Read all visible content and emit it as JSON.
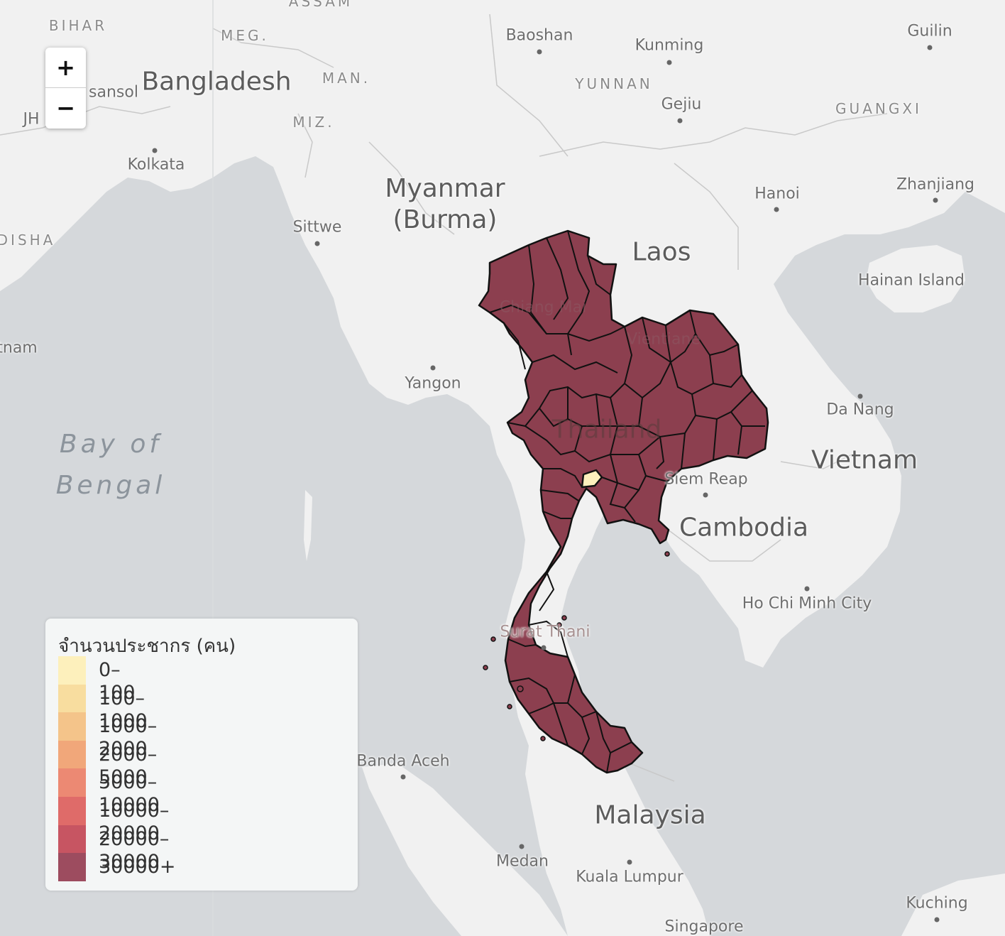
{
  "map": {
    "countries": [
      "Bangladesh",
      "Myanmar\n(Burma)",
      "Laos",
      "Thailand",
      "Vietnam",
      "Cambodia",
      "Malaysia"
    ],
    "regions": [
      "BIHAR",
      "MEG.",
      "MAN.",
      "MIZ.",
      "YUNNAN",
      "GUANGXI",
      "DISHA",
      "ASSAM"
    ],
    "cities": [
      "Baoshan",
      "Kunming",
      "Guilin",
      "Gejiu",
      "Kolkata",
      "Sittwe",
      "Hanoi",
      "Zhanjiang",
      "Hainan Island",
      "Yangon",
      "Chiang Mai",
      "Vientiane",
      "Da Nang",
      "Siem Reap",
      "Ho Chi Minh City",
      "Surat Thani",
      "Banda Aceh",
      "Medan",
      "Kuala Lumpur",
      "Singapore",
      "Kuching"
    ],
    "partial_labels": [
      "sansol",
      "JH",
      "tnam"
    ],
    "sea_label": "Bay of\nBengal"
  },
  "controls": {
    "zoom_in_label": "+",
    "zoom_out_label": "−"
  },
  "legend": {
    "title": "จำนวนประชากร (คน)",
    "items": [
      {
        "label": "0–100",
        "color": "#fdf0bc"
      },
      {
        "label": "100–1000",
        "color": "#f8dd9f"
      },
      {
        "label": "1000–2000",
        "color": "#f4c48a"
      },
      {
        "label": "2000–5000",
        "color": "#f1a77a"
      },
      {
        "label": "5000–10000",
        "color": "#ec8973"
      },
      {
        "label": "10000–20000",
        "color": "#df6b69"
      },
      {
        "label": "20000–30000",
        "color": "#c75562"
      },
      {
        "label": "30000+",
        "color": "#9d4c5f"
      }
    ]
  },
  "choropleth": {
    "fill_color": "#8c3f4f",
    "highlight_color": "#fdf0bc",
    "border_color": "#111111"
  }
}
